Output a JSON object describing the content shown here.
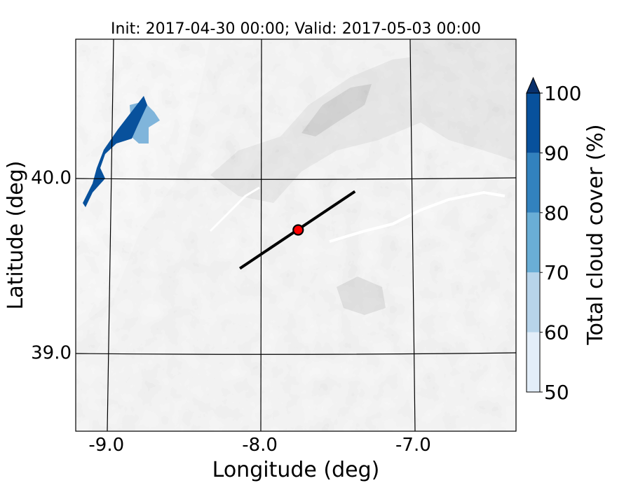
{
  "title": "Init: 2017-04-30 00:00; Valid: 2017-05-03 00:00",
  "axes": {
    "xlabel": "Longitude (deg)",
    "ylabel": "Latitude (deg)",
    "x_ticks": [
      {
        "value": -9.0,
        "label": "-9.0"
      },
      {
        "value": -8.0,
        "label": "-8.0"
      },
      {
        "value": -7.0,
        "label": "-7.0"
      }
    ],
    "y_ticks": [
      {
        "value": 40.0,
        "label": "40.0"
      },
      {
        "value": 39.0,
        "label": "39.0"
      }
    ],
    "xlim": [
      -9.2,
      -6.33
    ],
    "ylim": [
      38.55,
      40.79
    ],
    "graticule": true
  },
  "colorbar": {
    "label": "Total cloud cover (%)",
    "ticks": [
      "50",
      "60",
      "70",
      "80",
      "90",
      "100"
    ],
    "levels": [
      50,
      60,
      70,
      80,
      90,
      100
    ],
    "colors": [
      "#e3eef9",
      "#b7d4ea",
      "#6aaed6",
      "#3282be",
      "#08519c"
    ],
    "extend_color": "#08306b",
    "extend": "max"
  },
  "map_layers": {
    "terrain_colormap": "greys",
    "cloud_cover_colormap": "blues"
  },
  "transect": {
    "start": {
      "lon": -8.13,
      "lat": 39.48
    },
    "end": {
      "lon": -7.38,
      "lat": 39.92
    },
    "color": "#000000"
  },
  "marker": {
    "lon": -7.75,
    "lat": 39.7,
    "color": "#ff0000"
  }
}
